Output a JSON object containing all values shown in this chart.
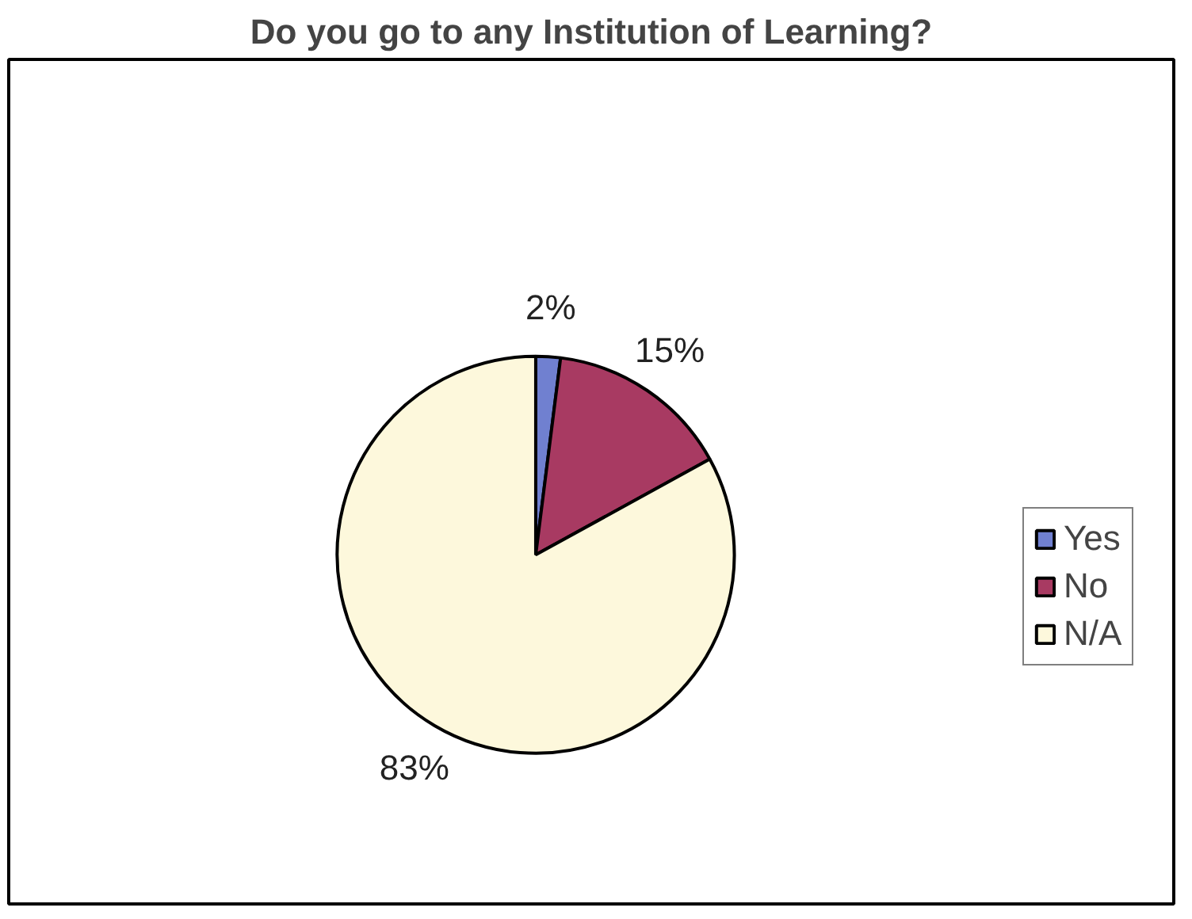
{
  "chart_data": {
    "type": "pie",
    "title": "Do you go to any Institution of Learning?",
    "categories": [
      "Yes",
      "No",
      "N/A"
    ],
    "values": [
      2,
      15,
      83
    ],
    "colors": [
      "#7080d0",
      "#a83a62",
      "#fdf8dc"
    ],
    "value_labels": [
      "2%",
      "15%",
      "83%"
    ],
    "legend": "right"
  }
}
